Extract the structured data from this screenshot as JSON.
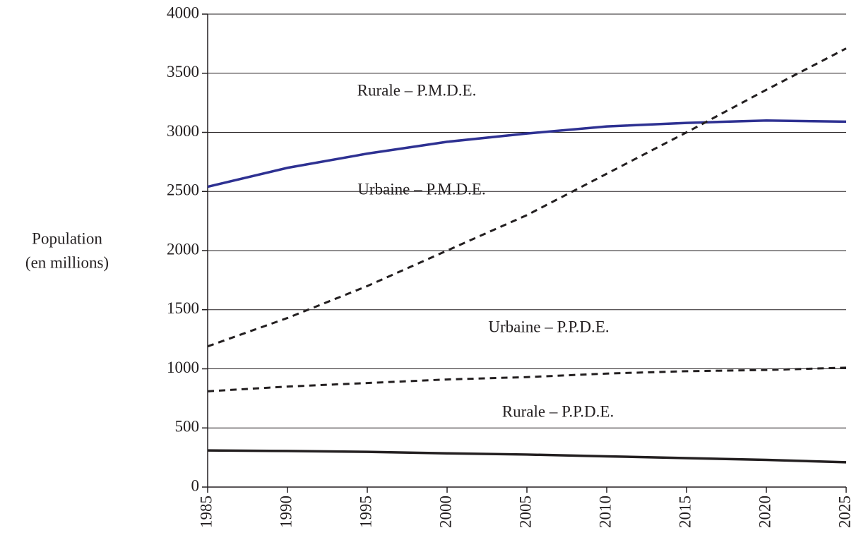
{
  "chart_data": {
    "type": "line",
    "ylabel": [
      "Population",
      "(en millions)"
    ],
    "x": [
      1985,
      1990,
      1995,
      2000,
      2005,
      2010,
      2015,
      2020,
      2025
    ],
    "xlim": [
      1985,
      2025
    ],
    "xticks": [
      1985,
      1990,
      1995,
      2000,
      2005,
      2010,
      2015,
      2020,
      2025
    ],
    "ylim": [
      0,
      4000
    ],
    "yticks": [
      0,
      500,
      1000,
      1500,
      2000,
      2500,
      3000,
      3500,
      4000
    ],
    "grid": true,
    "series": [
      {
        "name": "Rurale – P.M.D.E.",
        "color": "#2e3192",
        "dash": false,
        "values": [
          2540,
          2700,
          2820,
          2920,
          2990,
          3050,
          3080,
          3100,
          3090
        ]
      },
      {
        "name": "Urbaine – P.M.D.E.",
        "color": "#231f20",
        "dash": true,
        "values": [
          1190,
          1430,
          1700,
          2000,
          2300,
          2650,
          3000,
          3360,
          3710
        ]
      },
      {
        "name": "Urbaine – P.P.D.E.",
        "color": "#231f20",
        "dash": true,
        "values": [
          810,
          850,
          880,
          910,
          930,
          960,
          980,
          990,
          1010
        ]
      },
      {
        "name": "Rurale – P.P.D.E.",
        "color": "#231f20",
        "dash": false,
        "values": [
          310,
          305,
          298,
          285,
          275,
          260,
          245,
          230,
          210
        ]
      }
    ]
  }
}
